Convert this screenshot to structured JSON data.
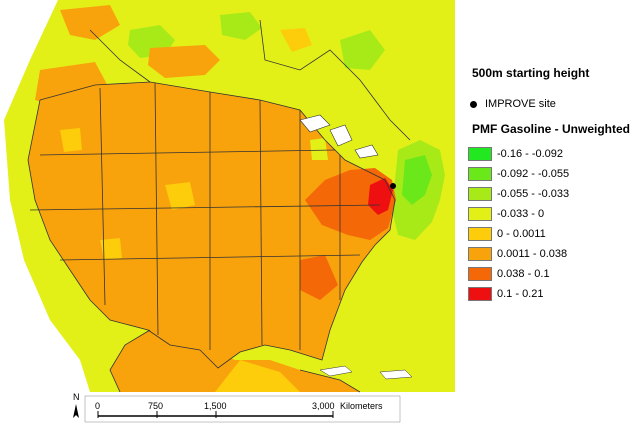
{
  "map": {
    "background_color": "#ffffff",
    "water_color": "#ffffff",
    "north_label": "N",
    "scale_bar": {
      "labels": [
        "0",
        "750",
        "1,500",
        "3,000"
      ],
      "unit": "Kilometers"
    }
  },
  "legend": {
    "height_title": "500m starting height",
    "site_label": "IMPROVE site",
    "pmf_title": "PMF Gasoline - Unweighted",
    "items": [
      {
        "label": "-0.16 - -0.092",
        "color": "#22e822"
      },
      {
        "label": "-0.092 - -0.055",
        "color": "#6ae81a"
      },
      {
        "label": "-0.055 - -0.033",
        "color": "#a8ea18"
      },
      {
        "label": "-0.033 - 0",
        "color": "#e2f018"
      },
      {
        "label": "0 - 0.0011",
        "color": "#fdcc0a"
      },
      {
        "label": "0.0011 - 0.038",
        "color": "#f8a20c"
      },
      {
        "label": "0.038 - 0.1",
        "color": "#f46808"
      },
      {
        "label": "0.1 - 0.21",
        "color": "#ee1010"
      }
    ]
  }
}
